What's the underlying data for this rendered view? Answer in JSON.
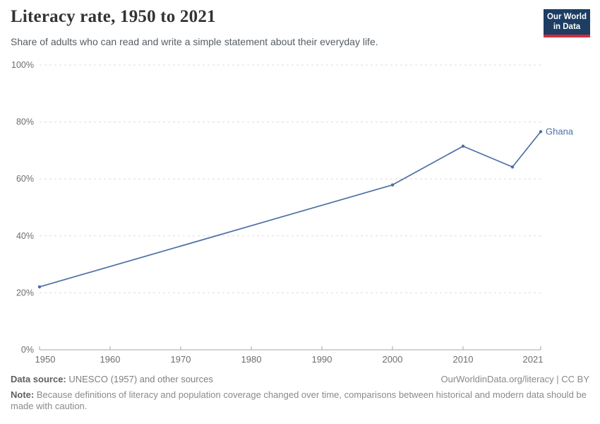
{
  "header": {
    "title": "Literacy rate, 1950 to 2021",
    "subtitle": "Share of adults who can read and write a simple statement about their everyday life.",
    "logo": {
      "line1": "Our World",
      "line2": "in Data",
      "bg_color": "#1d3d63",
      "bar_color": "#d12b3e"
    }
  },
  "chart_data": {
    "type": "line",
    "title": "Literacy rate, 1950 to 2021",
    "xlabel": "",
    "ylabel": "",
    "xlim": [
      1950,
      2021
    ],
    "ylim": [
      0,
      100
    ],
    "grid": "horizontal-dashed",
    "legend_position": "end-of-line-label",
    "x_ticks": [
      1950,
      1960,
      1970,
      1980,
      1990,
      2000,
      2010,
      2021
    ],
    "y_ticks": [
      0,
      20,
      40,
      60,
      80,
      100
    ],
    "y_tick_suffix": "%",
    "series": [
      {
        "name": "Ghana",
        "color": "#4c6fa5",
        "points": [
          {
            "x": 1950,
            "y": 22.1
          },
          {
            "x": 2000,
            "y": 57.9
          },
          {
            "x": 2010,
            "y": 71.5
          },
          {
            "x": 2017,
            "y": 64.2
          },
          {
            "x": 2021,
            "y": 76.6
          }
        ]
      }
    ],
    "colors": {
      "grid": "#dcdcdc",
      "axis": "#a5a5a5",
      "tick_label": "#6e6e6e"
    }
  },
  "footer": {
    "source_label": "Data source:",
    "source_text": " UNESCO (1957) and other sources",
    "license": "OurWorldinData.org/literacy | CC BY",
    "note_label": "Note:",
    "note_text": " Because definitions of literacy and population coverage changed over time, comparisons between historical and modern data should be made with caution."
  }
}
